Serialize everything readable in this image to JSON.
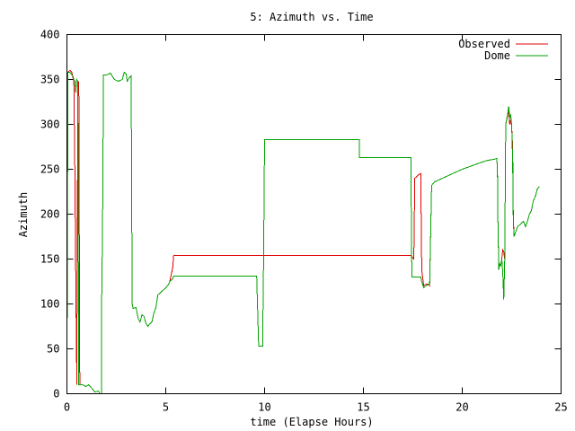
{
  "chart_data": {
    "type": "line",
    "title": "5: Azimuth vs. Time",
    "xlabel": "time (Elapse Hours)",
    "ylabel": "Azimuth",
    "xlim": [
      0,
      25
    ],
    "ylim": [
      0,
      400
    ],
    "xticks": [
      0,
      5,
      10,
      15,
      20,
      25
    ],
    "yticks": [
      0,
      50,
      100,
      150,
      200,
      250,
      300,
      350,
      400
    ],
    "grid": false,
    "legend_position": "top-right",
    "series": [
      {
        "name": "Observed",
        "color": "#e00000",
        "points": [
          [
            0.0,
            0
          ],
          [
            0.05,
            358
          ],
          [
            0.15,
            360
          ],
          [
            0.25,
            358
          ],
          [
            0.3,
            352
          ],
          [
            0.35,
            348
          ],
          [
            0.4,
            250
          ],
          [
            0.45,
            120
          ],
          [
            0.5,
            10
          ],
          [
            0.55,
            340
          ],
          [
            0.6,
            348
          ],
          [
            0.65,
            10
          ],
          [
            0.8,
            10
          ],
          [
            0.95,
            8
          ],
          [
            1.1,
            10
          ],
          [
            1.3,
            5
          ],
          [
            1.4,
            2
          ],
          [
            1.6,
            3
          ],
          [
            1.65,
            0
          ],
          [
            1.75,
            0
          ],
          [
            1.75,
            90
          ],
          [
            1.8,
            180
          ],
          [
            1.85,
            355
          ],
          [
            2.0,
            355
          ],
          [
            2.2,
            357
          ],
          [
            2.4,
            350
          ],
          [
            2.6,
            348
          ],
          [
            2.8,
            350
          ],
          [
            2.9,
            358
          ],
          [
            3.0,
            356
          ],
          [
            3.05,
            348
          ],
          [
            3.15,
            352
          ],
          [
            3.25,
            354
          ],
          [
            3.3,
            100
          ],
          [
            3.35,
            95
          ],
          [
            3.5,
            96
          ],
          [
            3.6,
            84
          ],
          [
            3.7,
            80
          ],
          [
            3.8,
            88
          ],
          [
            3.9,
            86
          ],
          [
            4.0,
            78
          ],
          [
            4.1,
            75
          ],
          [
            4.2,
            78
          ],
          [
            4.3,
            80
          ],
          [
            4.4,
            90
          ],
          [
            4.5,
            96
          ],
          [
            4.6,
            110
          ],
          [
            4.7,
            112
          ],
          [
            4.8,
            114
          ],
          [
            4.9,
            116
          ],
          [
            5.0,
            118
          ],
          [
            5.15,
            122
          ],
          [
            5.2,
            125
          ],
          [
            5.35,
            140
          ],
          [
            5.4,
            154
          ],
          [
            7.0,
            154
          ],
          [
            9.0,
            154
          ],
          [
            11.0,
            154
          ],
          [
            13.0,
            154
          ],
          [
            15.0,
            154
          ],
          [
            17.0,
            154
          ],
          [
            17.4,
            154
          ],
          [
            17.55,
            150
          ],
          [
            17.6,
            240
          ],
          [
            17.8,
            244
          ],
          [
            17.9,
            245
          ],
          [
            17.95,
            138
          ],
          [
            18.05,
            120
          ],
          [
            18.15,
            122
          ],
          [
            18.3,
            122
          ],
          [
            18.35,
            120
          ],
          [
            18.45,
            232
          ],
          [
            18.6,
            236
          ],
          [
            19.0,
            240
          ],
          [
            19.5,
            245
          ],
          [
            20.0,
            250
          ],
          [
            20.5,
            254
          ],
          [
            21.0,
            258
          ],
          [
            21.3,
            260
          ],
          [
            21.6,
            261
          ],
          [
            21.75,
            262
          ],
          [
            21.78,
            248
          ],
          [
            21.8,
            200
          ],
          [
            21.85,
            140
          ],
          [
            21.9,
            145
          ],
          [
            21.95,
            142
          ],
          [
            22.0,
            150
          ],
          [
            22.05,
            160
          ],
          [
            22.1,
            158
          ],
          [
            22.15,
            150
          ],
          [
            22.2,
            300
          ],
          [
            22.3,
            310
          ],
          [
            22.35,
            316
          ],
          [
            22.4,
            300
          ],
          [
            22.45,
            305
          ],
          [
            22.5,
            298
          ],
          [
            22.55,
            275
          ],
          [
            22.58,
            200
          ],
          [
            22.62,
            175
          ],
          [
            22.7,
            180
          ],
          [
            22.8,
            186
          ],
          [
            22.9,
            188
          ],
          [
            23.0,
            190
          ],
          [
            23.1,
            192
          ],
          [
            23.2,
            186
          ],
          [
            23.3,
            192
          ],
          [
            23.4,
            200
          ],
          [
            23.5,
            204
          ],
          [
            23.6,
            215
          ],
          [
            23.7,
            220
          ],
          [
            23.8,
            228
          ],
          [
            23.9,
            231
          ]
        ]
      },
      {
        "name": "Dome",
        "color": "#00a000",
        "points": [
          [
            0.0,
            0
          ],
          [
            0.05,
            358
          ],
          [
            0.15,
            358
          ],
          [
            0.25,
            355
          ],
          [
            0.3,
            354
          ],
          [
            0.35,
            350
          ],
          [
            0.4,
            348
          ],
          [
            0.45,
            335
          ],
          [
            0.48,
            348
          ],
          [
            0.5,
            350
          ],
          [
            0.55,
            348
          ],
          [
            0.6,
            10
          ],
          [
            0.8,
            10
          ],
          [
            0.95,
            8
          ],
          [
            1.1,
            10
          ],
          [
            1.3,
            5
          ],
          [
            1.4,
            2
          ],
          [
            1.6,
            3
          ],
          [
            1.65,
            0
          ],
          [
            1.75,
            0
          ],
          [
            1.75,
            90
          ],
          [
            1.8,
            180
          ],
          [
            1.85,
            355
          ],
          [
            2.0,
            355
          ],
          [
            2.2,
            357
          ],
          [
            2.4,
            350
          ],
          [
            2.6,
            348
          ],
          [
            2.8,
            350
          ],
          [
            2.9,
            358
          ],
          [
            3.0,
            356
          ],
          [
            3.05,
            348
          ],
          [
            3.15,
            352
          ],
          [
            3.25,
            354
          ],
          [
            3.3,
            100
          ],
          [
            3.35,
            95
          ],
          [
            3.5,
            96
          ],
          [
            3.6,
            84
          ],
          [
            3.7,
            80
          ],
          [
            3.8,
            88
          ],
          [
            3.9,
            86
          ],
          [
            4.0,
            78
          ],
          [
            4.1,
            75
          ],
          [
            4.2,
            78
          ],
          [
            4.3,
            80
          ],
          [
            4.4,
            90
          ],
          [
            4.5,
            96
          ],
          [
            4.6,
            110
          ],
          [
            4.7,
            112
          ],
          [
            4.8,
            114
          ],
          [
            4.9,
            116
          ],
          [
            5.0,
            118
          ],
          [
            5.15,
            122
          ],
          [
            5.2,
            125
          ],
          [
            5.35,
            128
          ],
          [
            5.4,
            131
          ],
          [
            7.0,
            131
          ],
          [
            9.0,
            131
          ],
          [
            9.6,
            131
          ],
          [
            9.7,
            53
          ],
          [
            9.9,
            53
          ],
          [
            9.95,
            150
          ],
          [
            10.0,
            283
          ],
          [
            12.0,
            283
          ],
          [
            14.0,
            283
          ],
          [
            14.8,
            283
          ],
          [
            14.8,
            263
          ],
          [
            16.0,
            263
          ],
          [
            17.3,
            263
          ],
          [
            17.4,
            263
          ],
          [
            17.45,
            130
          ],
          [
            17.8,
            130
          ],
          [
            17.9,
            130
          ],
          [
            17.95,
            125
          ],
          [
            18.05,
            118
          ],
          [
            18.15,
            120
          ],
          [
            18.3,
            122
          ],
          [
            18.35,
            122
          ],
          [
            18.45,
            232
          ],
          [
            18.6,
            236
          ],
          [
            19.0,
            240
          ],
          [
            19.5,
            245
          ],
          [
            20.0,
            250
          ],
          [
            20.5,
            254
          ],
          [
            21.0,
            258
          ],
          [
            21.3,
            260
          ],
          [
            21.6,
            261
          ],
          [
            21.75,
            262
          ],
          [
            21.78,
            250
          ],
          [
            21.8,
            200
          ],
          [
            21.85,
            138
          ],
          [
            21.9,
            145
          ],
          [
            21.95,
            142
          ],
          [
            22.0,
            150
          ],
          [
            22.05,
            135
          ],
          [
            22.1,
            105
          ],
          [
            22.15,
            150
          ],
          [
            22.2,
            300
          ],
          [
            22.3,
            312
          ],
          [
            22.35,
            320
          ],
          [
            22.4,
            308
          ],
          [
            22.45,
            310
          ],
          [
            22.5,
            300
          ],
          [
            22.55,
            260
          ],
          [
            22.58,
            195
          ],
          [
            22.62,
            175
          ],
          [
            22.7,
            180
          ],
          [
            22.8,
            186
          ],
          [
            22.9,
            188
          ],
          [
            23.0,
            190
          ],
          [
            23.1,
            192
          ],
          [
            23.2,
            186
          ],
          [
            23.3,
            192
          ],
          [
            23.4,
            200
          ],
          [
            23.5,
            204
          ],
          [
            23.6,
            215
          ],
          [
            23.7,
            220
          ],
          [
            23.8,
            228
          ],
          [
            23.9,
            231
          ]
        ]
      }
    ]
  }
}
